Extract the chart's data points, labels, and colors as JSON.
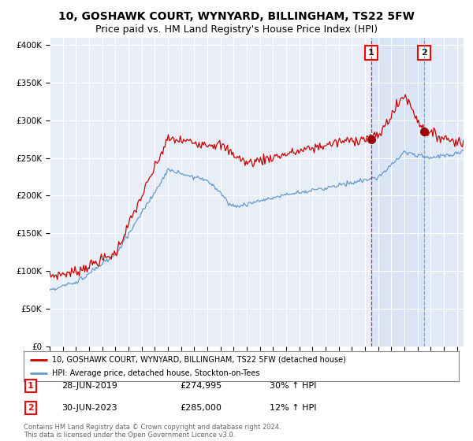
{
  "title": "10, GOSHAWK COURT, WYNYARD, BILLINGHAM, TS22 5FW",
  "subtitle": "Price paid vs. HM Land Registry's House Price Index (HPI)",
  "ylim": [
    0,
    410000
  ],
  "yticks": [
    0,
    50000,
    100000,
    150000,
    200000,
    250000,
    300000,
    350000,
    400000
  ],
  "ytick_labels": [
    "£0",
    "£50K",
    "£100K",
    "£150K",
    "£200K",
    "£250K",
    "£300K",
    "£350K",
    "£400K"
  ],
  "background_color": "#ffffff",
  "plot_bg_color": "#e8eef8",
  "grid_color": "#ffffff",
  "red_color": "#cc0000",
  "blue_color": "#6699cc",
  "shade_color": "#d0e0f0",
  "marker1_value": 274995,
  "marker2_value": 285000,
  "marker1_year": 2019.5,
  "marker2_year": 2023.5,
  "legend_label1": "10, GOSHAWK COURT, WYNYARD, BILLINGHAM, TS22 5FW (detached house)",
  "legend_label2": "HPI: Average price, detached house, Stockton-on-Tees",
  "annotation1_num": "1",
  "annotation1_date": "28-JUN-2019",
  "annotation1_price": "£274,995",
  "annotation1_hpi": "30% ↑ HPI",
  "annotation2_num": "2",
  "annotation2_date": "30-JUN-2023",
  "annotation2_price": "£285,000",
  "annotation2_hpi": "12% ↑ HPI",
  "footer": "Contains HM Land Registry data © Crown copyright and database right 2024.\nThis data is licensed under the Open Government Licence v3.0.",
  "title_fontsize": 10,
  "subtitle_fontsize": 9,
  "xmin": 1995,
  "xmax": 2026.5
}
